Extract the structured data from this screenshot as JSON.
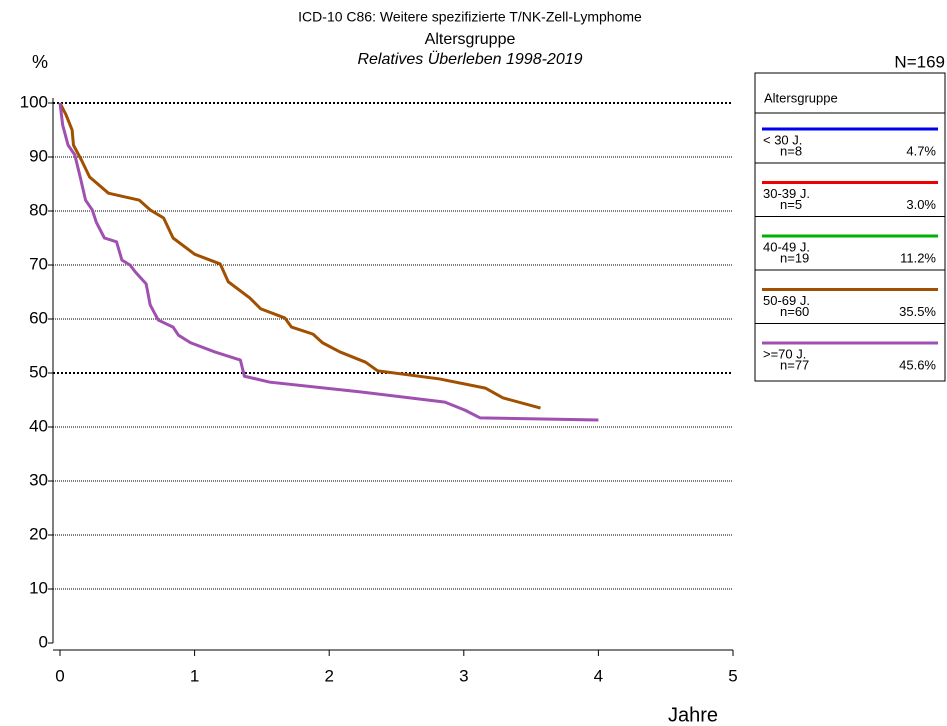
{
  "chart_data": {
    "type": "line",
    "title": "ICD-10 C86: Weitere spezifizierte T/NK-Zell-Lymphome",
    "subtitle": "Altersgruppe",
    "subtitle2": "Relatives Überleben 1998-2019",
    "y_label": "%",
    "x_label": "Jahre",
    "annotation": "N=169",
    "xlim": [
      0,
      5
    ],
    "xticks": [
      0,
      1,
      2,
      3,
      4,
      5
    ],
    "ylim": [
      0,
      100
    ],
    "yticks": [
      0,
      10,
      20,
      30,
      40,
      50,
      60,
      70,
      80,
      90,
      100
    ],
    "grid": true,
    "emphasized_grid": [
      50,
      100
    ],
    "legend_title": "Altersgruppe",
    "legend_position": "right",
    "series": [
      {
        "name": "< 30 J.",
        "n": "n=8",
        "share": "4.7%",
        "color": "#0000ee",
        "x": [],
        "values": []
      },
      {
        "name": "30-39 J.",
        "n": "n=5",
        "share": "3.0%",
        "color": "#ee0000",
        "x": [],
        "values": []
      },
      {
        "name": "40-49 J.",
        "n": "n=19",
        "share": "11.2%",
        "color": "#00b000",
        "x": [],
        "values": []
      },
      {
        "name": "50-69 J.",
        "n": "n=60",
        "share": "35.5%",
        "color": "#a05000",
        "x": [
          0,
          0.045,
          0.09,
          0.1,
          0.16,
          0.22,
          0.36,
          0.59,
          0.67,
          0.77,
          0.84,
          1.0,
          1.19,
          1.25,
          1.41,
          1.49,
          1.67,
          1.72,
          1.88,
          1.95,
          2.08,
          2.27,
          2.36,
          2.82,
          3.16,
          3.29,
          3.57
        ],
        "values": [
          100,
          97.8,
          95,
          92.2,
          89.4,
          86.3,
          83.3,
          82,
          80.2,
          78.7,
          75,
          72,
          70.2,
          66.9,
          63.9,
          61.9,
          60.2,
          58.5,
          57.2,
          55.6,
          53.9,
          52,
          50.4,
          48.9,
          47.2,
          45.4,
          43.5
        ]
      },
      {
        "name": ">=70 J.",
        "n": "n=77",
        "share": "45.6%",
        "color": "#a050b0",
        "x": [
          0,
          0.02,
          0.06,
          0.11,
          0.15,
          0.19,
          0.24,
          0.27,
          0.33,
          0.42,
          0.46,
          0.52,
          0.56,
          0.64,
          0.67,
          0.73,
          0.84,
          0.88,
          0.97,
          1.15,
          1.34,
          1.37,
          1.56,
          2.23,
          2.86,
          3.01,
          3.12,
          4.0
        ],
        "values": [
          100,
          95.9,
          92.2,
          90.4,
          86.3,
          82,
          80.2,
          77.9,
          75,
          74.3,
          70.9,
          70,
          68.7,
          66.5,
          62.6,
          59.8,
          58.5,
          57,
          55.6,
          53.9,
          52.4,
          49.4,
          48.3,
          46.5,
          44.6,
          43.1,
          41.7,
          41.3
        ]
      }
    ]
  }
}
